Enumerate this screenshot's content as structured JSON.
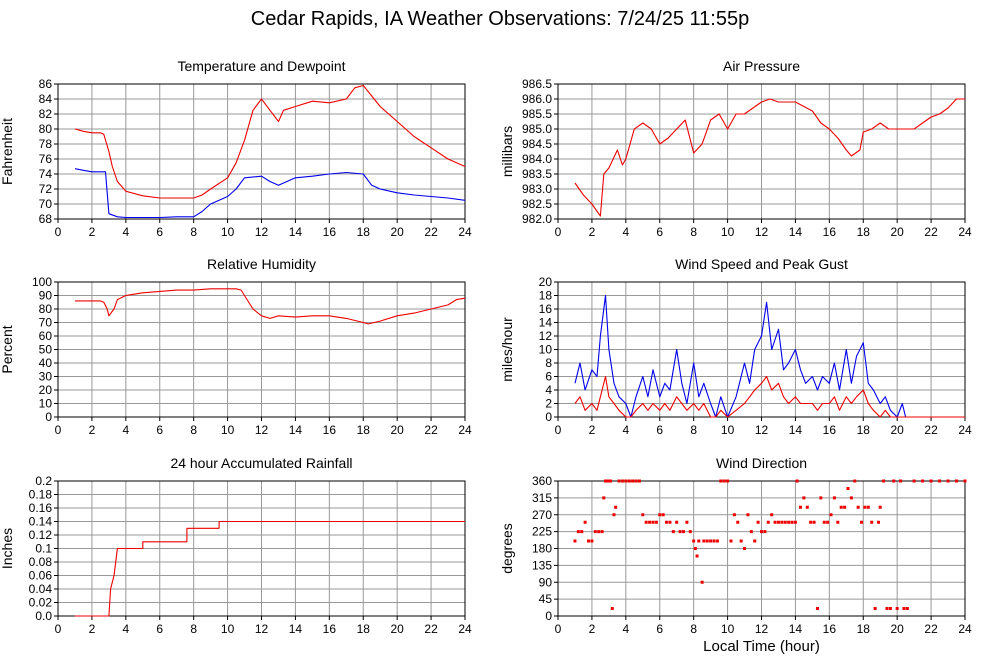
{
  "page_title": "Cedar Rapids, IA Weather Observations: 7/24/25 11:55p",
  "colors": {
    "red": "#ee0000",
    "blue": "#0000ee",
    "grid": "#999999"
  },
  "bottom_xlabel": "Local Time (hour)",
  "chart_data": [
    {
      "type": "line",
      "title": "Temperature and Dewpoint",
      "xlabel": "",
      "ylabel": "Fahrenheit",
      "xlim": [
        0,
        24
      ],
      "ylim": [
        68,
        86
      ],
      "xticks": [
        0,
        2,
        4,
        6,
        8,
        10,
        12,
        14,
        16,
        18,
        20,
        22,
        24
      ],
      "yticks": [
        68,
        70,
        72,
        74,
        76,
        78,
        80,
        82,
        84,
        86
      ],
      "ytick_labels": [
        "68",
        "70",
        "72",
        "74",
        "76",
        "78",
        "80",
        "82",
        "84",
        "86"
      ],
      "grid": true,
      "series": [
        {
          "color": "#ee0000",
          "x": [
            1.0,
            1.5,
            2.0,
            2.5,
            2.7,
            3.0,
            3.2,
            3.5,
            4.0,
            5.0,
            6.0,
            7.0,
            8.0,
            8.5,
            9.0,
            10.0,
            10.5,
            11.0,
            11.5,
            12.0,
            12.5,
            13.0,
            13.3,
            14.0,
            15.0,
            16.0,
            17.0,
            17.5,
            18.0,
            19.0,
            20.0,
            21.0,
            22.0,
            23.0,
            24.0
          ],
          "y": [
            80.0,
            79.7,
            79.5,
            79.5,
            79.3,
            77.0,
            75.0,
            73.0,
            71.7,
            71.1,
            70.8,
            70.8,
            70.8,
            71.2,
            72.0,
            73.5,
            75.5,
            78.5,
            82.5,
            84.0,
            82.5,
            81.0,
            82.5,
            83.0,
            83.7,
            83.5,
            84.0,
            85.5,
            85.8,
            83.0,
            81.0,
            79.0,
            77.5,
            76.0,
            75.0
          ]
        },
        {
          "color": "#0000ee",
          "x": [
            1.0,
            1.5,
            2.0,
            2.5,
            2.8,
            2.9,
            3.0,
            3.5,
            4.0,
            5.0,
            6.0,
            7.0,
            8.0,
            8.5,
            9.0,
            10.0,
            10.5,
            11.0,
            12.0,
            12.5,
            13.0,
            13.5,
            14.0,
            15.0,
            16.0,
            17.0,
            18.0,
            18.5,
            19.0,
            20.0,
            21.0,
            22.0,
            23.0,
            24.0
          ],
          "y": [
            74.7,
            74.5,
            74.3,
            74.3,
            74.3,
            71.5,
            68.7,
            68.3,
            68.2,
            68.2,
            68.2,
            68.3,
            68.3,
            69.0,
            70.0,
            71.0,
            72.0,
            73.5,
            73.7,
            73.0,
            72.5,
            73.0,
            73.5,
            73.7,
            74.0,
            74.2,
            74.0,
            72.5,
            72.0,
            71.5,
            71.2,
            71.0,
            70.8,
            70.5
          ]
        }
      ]
    },
    {
      "type": "line",
      "title": "Air Pressure",
      "xlabel": "",
      "ylabel": "millibars",
      "xlim": [
        0,
        24
      ],
      "ylim": [
        982.0,
        986.5
      ],
      "xticks": [
        0,
        2,
        4,
        6,
        8,
        10,
        12,
        14,
        16,
        18,
        20,
        22,
        24
      ],
      "yticks": [
        982.0,
        982.5,
        983.0,
        983.5,
        984.0,
        984.5,
        985.0,
        985.5,
        986.0,
        986.5
      ],
      "ytick_labels": [
        "982.0",
        "982.5",
        "983.0",
        "983.5",
        "984.0",
        "984.5",
        "985.0",
        "985.5",
        "986.0",
        "986.5"
      ],
      "grid": true,
      "series": [
        {
          "color": "#ee0000",
          "x": [
            1.0,
            1.5,
            2.0,
            2.5,
            2.7,
            3.0,
            3.5,
            3.8,
            4.0,
            4.5,
            5.0,
            5.5,
            6.0,
            6.5,
            7.0,
            7.5,
            8.0,
            8.5,
            9.0,
            9.5,
            10.0,
            10.5,
            11.0,
            11.5,
            12.0,
            12.5,
            13.0,
            14.0,
            15.0,
            15.5,
            16.0,
            16.5,
            17.0,
            17.3,
            17.8,
            18.0,
            18.5,
            19.0,
            19.5,
            20.0,
            20.5,
            21.0,
            21.5,
            22.0,
            22.5,
            23.0,
            23.5,
            24.0
          ],
          "y": [
            983.2,
            982.8,
            982.5,
            982.1,
            983.5,
            983.7,
            984.3,
            983.8,
            984.0,
            985.0,
            985.2,
            985.0,
            984.5,
            984.7,
            985.0,
            985.3,
            984.2,
            984.5,
            985.3,
            985.5,
            985.0,
            985.5,
            985.5,
            985.7,
            985.9,
            986.0,
            985.9,
            985.9,
            985.6,
            985.2,
            985.0,
            984.7,
            984.3,
            984.1,
            984.3,
            984.9,
            985.0,
            985.2,
            985.0,
            985.0,
            985.0,
            985.0,
            985.2,
            985.4,
            985.5,
            985.7,
            986.0,
            986.0
          ]
        }
      ]
    },
    {
      "type": "line",
      "title": "Relative Humidity",
      "xlabel": "",
      "ylabel": "Percent",
      "xlim": [
        0,
        24
      ],
      "ylim": [
        0,
        100
      ],
      "xticks": [
        0,
        2,
        4,
        6,
        8,
        10,
        12,
        14,
        16,
        18,
        20,
        22,
        24
      ],
      "yticks": [
        0,
        10,
        20,
        30,
        40,
        50,
        60,
        70,
        80,
        90,
        100
      ],
      "ytick_labels": [
        "0",
        "10",
        "20",
        "30",
        "40",
        "50",
        "60",
        "70",
        "80",
        "90",
        "100"
      ],
      "grid": true,
      "series": [
        {
          "color": "#ee0000",
          "x": [
            1.0,
            2.0,
            2.5,
            2.7,
            2.9,
            3.0,
            3.3,
            3.5,
            4.0,
            5.0,
            6.0,
            7.0,
            8.0,
            9.0,
            10.0,
            10.5,
            10.8,
            11.0,
            11.5,
            12.0,
            12.5,
            13.0,
            14.0,
            15.0,
            16.0,
            17.0,
            18.0,
            18.3,
            19.0,
            20.0,
            21.0,
            22.0,
            23.0,
            23.5,
            24.0
          ],
          "y": [
            86,
            86,
            86,
            85,
            80,
            75,
            80,
            87,
            90,
            92,
            93,
            94,
            94,
            95,
            95,
            95,
            94,
            90,
            80,
            75,
            73,
            75,
            74,
            75,
            75,
            73,
            70,
            69,
            71,
            75,
            77,
            80,
            83,
            87,
            88
          ]
        }
      ]
    },
    {
      "type": "line",
      "title": "Wind Speed and Peak Gust",
      "xlabel": "",
      "ylabel": "miles/hour",
      "xlim": [
        0,
        24
      ],
      "ylim": [
        0,
        20
      ],
      "xticks": [
        0,
        2,
        4,
        6,
        8,
        10,
        12,
        14,
        16,
        18,
        20,
        22,
        24
      ],
      "yticks": [
        0,
        2,
        4,
        6,
        8,
        10,
        12,
        14,
        16,
        18,
        20
      ],
      "ytick_labels": [
        "0",
        "2",
        "4",
        "6",
        "8",
        "10",
        "12",
        "14",
        "16",
        "18",
        "20"
      ],
      "grid": true,
      "series": [
        {
          "color": "#0000ee",
          "x": [
            1.0,
            1.3,
            1.6,
            2.0,
            2.3,
            2.5,
            2.8,
            3.0,
            3.3,
            3.6,
            4.0,
            4.3,
            4.6,
            5.0,
            5.3,
            5.6,
            6.0,
            6.3,
            6.6,
            7.0,
            7.3,
            7.6,
            8.0,
            8.3,
            8.6,
            9.0,
            9.3,
            9.6,
            10.0,
            10.5,
            11.0,
            11.3,
            11.6,
            12.0,
            12.3,
            12.6,
            13.0,
            13.3,
            13.6,
            14.0,
            14.3,
            14.6,
            15.0,
            15.3,
            15.6,
            16.0,
            16.3,
            16.6,
            17.0,
            17.3,
            17.6,
            18.0,
            18.3,
            18.6,
            19.0,
            19.3,
            19.6,
            20.0,
            20.3,
            20.5,
            24.0
          ],
          "y": [
            5,
            8,
            4,
            7,
            6,
            12,
            18,
            10,
            5,
            3,
            2,
            0,
            3,
            6,
            3,
            7,
            3,
            5,
            4,
            10,
            5,
            2,
            8,
            3,
            5,
            2,
            0,
            3,
            0,
            3,
            8,
            5,
            10,
            12,
            17,
            10,
            13,
            7,
            8,
            10,
            7,
            5,
            6,
            4,
            6,
            5,
            8,
            4,
            10,
            5,
            9,
            11,
            5,
            4,
            2,
            3,
            1,
            0,
            2,
            0,
            0
          ]
        },
        {
          "color": "#ee0000",
          "x": [
            1.0,
            1.3,
            1.6,
            2.0,
            2.3,
            2.5,
            2.8,
            3.0,
            3.3,
            3.6,
            4.0,
            4.3,
            4.6,
            5.0,
            5.3,
            5.6,
            6.0,
            6.3,
            6.6,
            7.0,
            7.3,
            7.6,
            8.0,
            8.3,
            8.6,
            9.0,
            9.3,
            9.6,
            10.0,
            10.5,
            11.0,
            11.3,
            11.6,
            12.0,
            12.3,
            12.6,
            13.0,
            13.3,
            13.6,
            14.0,
            14.3,
            14.6,
            15.0,
            15.3,
            15.6,
            16.0,
            16.3,
            16.6,
            17.0,
            17.3,
            17.6,
            18.0,
            18.3,
            18.6,
            19.0,
            19.3,
            19.6,
            20.0,
            24.0
          ],
          "y": [
            2,
            3,
            1,
            2,
            1,
            3,
            6,
            3,
            2,
            1,
            0,
            0,
            1,
            2,
            1,
            2,
            1,
            2,
            1,
            3,
            2,
            1,
            2,
            1,
            2,
            0,
            0,
            1,
            0,
            1,
            2,
            3,
            4,
            5,
            6,
            4,
            5,
            3,
            2,
            3,
            2,
            2,
            2,
            1,
            2,
            2,
            3,
            1,
            3,
            2,
            3,
            4,
            2,
            1,
            0,
            1,
            0,
            0,
            0
          ]
        }
      ]
    },
    {
      "type": "line",
      "title": "24 hour Accumulated Rainfall",
      "xlabel": "",
      "ylabel": "Inches",
      "xlim": [
        0,
        24
      ],
      "ylim": [
        0,
        0.2
      ],
      "xticks": [
        0,
        2,
        4,
        6,
        8,
        10,
        12,
        14,
        16,
        18,
        20,
        22,
        24
      ],
      "yticks": [
        0,
        0.02,
        0.04,
        0.06,
        0.08,
        0.1,
        0.12,
        0.14,
        0.16,
        0.18,
        0.2
      ],
      "ytick_labels": [
        "0.0",
        "0.02",
        "0.04",
        "0.06",
        "0.08",
        "0.1",
        "0.12",
        "0.14",
        "0.16",
        "0.18",
        "0.2"
      ],
      "grid": true,
      "series": [
        {
          "color": "#ee0000",
          "x": [
            1.0,
            3.0,
            3.1,
            3.3,
            3.5,
            3.7,
            5.0,
            5.0,
            7.6,
            7.6,
            9.5,
            9.5,
            24.0
          ],
          "y": [
            0,
            0,
            0.04,
            0.06,
            0.1,
            0.1,
            0.1,
            0.11,
            0.11,
            0.13,
            0.13,
            0.14,
            0.14
          ]
        }
      ]
    },
    {
      "type": "scatter",
      "title": "Wind Direction",
      "xlabel": "Local Time (hour)",
      "ylabel": "degrees",
      "xlim": [
        0,
        24
      ],
      "ylim": [
        0,
        360
      ],
      "xticks": [
        0,
        2,
        4,
        6,
        8,
        10,
        12,
        14,
        16,
        18,
        20,
        22,
        24
      ],
      "yticks": [
        0,
        45,
        90,
        135,
        180,
        225,
        270,
        315,
        360
      ],
      "ytick_labels": [
        "0",
        "45",
        "90",
        "135",
        "180",
        "225",
        "270",
        "315",
        "360"
      ],
      "grid": true,
      "series": [
        {
          "color": "#ee0000",
          "x": [
            1.0,
            1.2,
            1.4,
            1.6,
            1.8,
            2.0,
            2.2,
            2.4,
            2.6,
            2.7,
            2.8,
            2.9,
            3.0,
            3.1,
            3.2,
            3.3,
            3.4,
            3.6,
            3.8,
            4.0,
            4.2,
            4.4,
            4.6,
            4.8,
            5.0,
            5.2,
            5.4,
            5.6,
            5.8,
            6.0,
            6.2,
            6.4,
            6.6,
            6.8,
            7.0,
            7.2,
            7.4,
            7.6,
            7.8,
            8.0,
            8.1,
            8.2,
            8.3,
            8.5,
            8.6,
            8.8,
            9.0,
            9.2,
            9.4,
            9.6,
            9.8,
            10.0,
            10.2,
            10.4,
            10.6,
            10.8,
            11.0,
            11.2,
            11.4,
            11.6,
            11.8,
            12.0,
            12.2,
            12.4,
            12.6,
            12.8,
            13.0,
            13.2,
            13.4,
            13.6,
            13.8,
            14.0,
            14.1,
            14.3,
            14.5,
            14.7,
            14.9,
            15.1,
            15.3,
            15.5,
            15.7,
            15.9,
            16.1,
            16.3,
            16.5,
            16.7,
            16.9,
            17.1,
            17.3,
            17.5,
            17.7,
            17.9,
            18.1,
            18.3,
            18.5,
            18.7,
            18.9,
            19.0,
            19.2,
            19.4,
            19.6,
            19.8,
            20.0,
            20.2,
            20.4,
            20.6,
            21.0,
            21.5,
            22.0,
            22.5,
            23.0,
            23.5,
            24.0
          ],
          "y": [
            200,
            225,
            225,
            250,
            200,
            200,
            225,
            225,
            225,
            315,
            360,
            360,
            360,
            360,
            20,
            270,
            290,
            360,
            360,
            360,
            360,
            360,
            360,
            360,
            270,
            250,
            250,
            250,
            250,
            270,
            270,
            250,
            250,
            225,
            250,
            225,
            225,
            250,
            225,
            200,
            180,
            160,
            200,
            90,
            200,
            200,
            200,
            200,
            200,
            360,
            360,
            360,
            200,
            270,
            250,
            200,
            180,
            270,
            225,
            200,
            250,
            225,
            225,
            250,
            270,
            250,
            250,
            250,
            250,
            250,
            250,
            250,
            360,
            290,
            315,
            290,
            250,
            250,
            20,
            315,
            250,
            250,
            270,
            315,
            250,
            290,
            290,
            340,
            315,
            360,
            290,
            250,
            290,
            290,
            250,
            20,
            250,
            290,
            360,
            20,
            20,
            360,
            20,
            360,
            20,
            20,
            360,
            360,
            360,
            360,
            360,
            360,
            360
          ]
        }
      ]
    }
  ]
}
